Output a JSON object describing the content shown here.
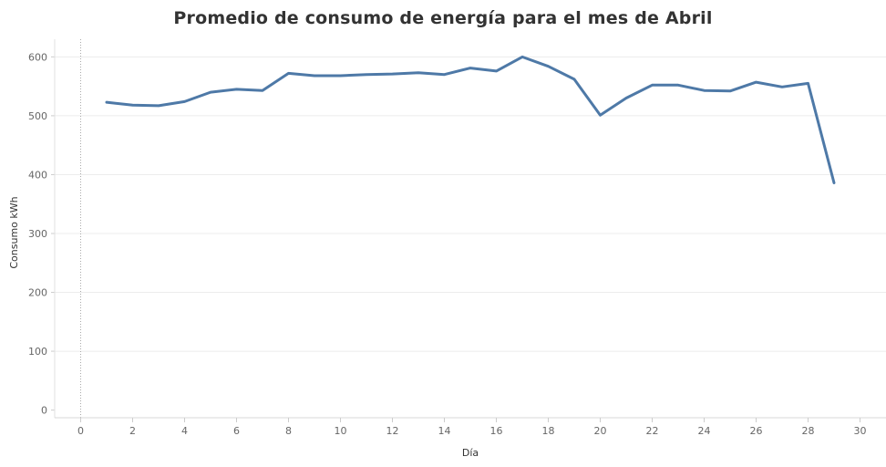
{
  "chart_data": {
    "type": "line",
    "title": "Promedio de consumo de energía para el mes de Abril",
    "xlabel": "Día",
    "ylabel": "Consumo kWh",
    "xlim": [
      -1,
      31
    ],
    "ylim": [
      -13,
      630
    ],
    "xticks": [
      0,
      2,
      4,
      6,
      8,
      10,
      12,
      14,
      16,
      18,
      20,
      22,
      24,
      26,
      28,
      30
    ],
    "yticks": [
      0,
      100,
      200,
      300,
      400,
      500,
      600
    ],
    "grid": true,
    "legend": "none",
    "line_color": "#4e79a7",
    "series": [
      {
        "x": [
          1,
          2,
          3,
          4,
          5,
          6,
          7,
          8,
          9,
          10,
          11,
          12,
          13,
          14,
          15,
          16,
          17,
          18,
          19,
          20,
          21,
          22,
          23,
          24,
          25,
          26,
          27,
          28,
          29
        ],
        "values": [
          523,
          518,
          517,
          524,
          540,
          545,
          543,
          572,
          568,
          568,
          570,
          571,
          573,
          570,
          581,
          576,
          600,
          584,
          562,
          501,
          530,
          552,
          552,
          543,
          542,
          557,
          549,
          555,
          386
        ]
      }
    ]
  }
}
